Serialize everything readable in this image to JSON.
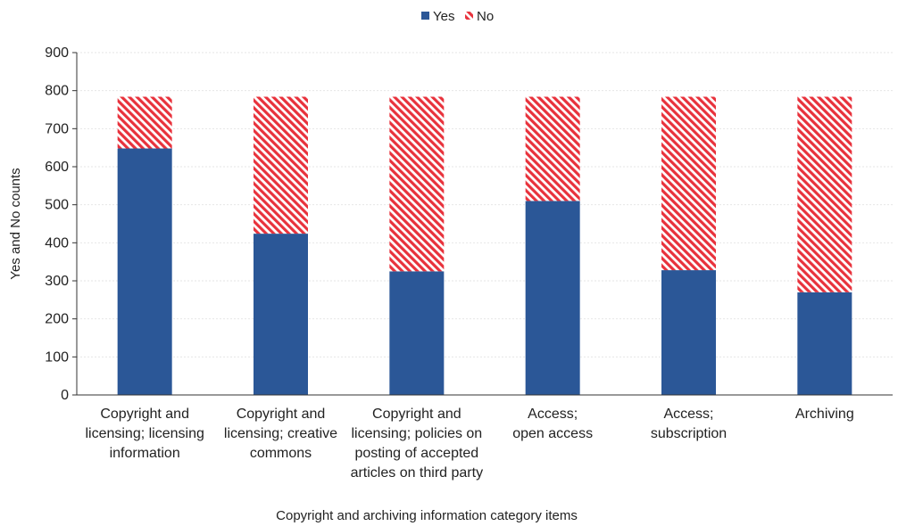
{
  "chart_data": {
    "type": "bar",
    "stacked": true,
    "title": "",
    "xlabel": "Copyright and archiving information category items",
    "ylabel": "Yes and No counts",
    "ylim": [
      0,
      900
    ],
    "yticks": [
      0,
      100,
      200,
      300,
      400,
      500,
      600,
      700,
      800,
      900
    ],
    "grid": true,
    "legend_position": "top-center",
    "categories": [
      [
        "Copyright and",
        "licensing; licensing",
        "information"
      ],
      [
        "Copyright and",
        "licensing; creative",
        "commons"
      ],
      [
        "Copyright and",
        "licensing; policies on",
        "posting of accepted",
        "articles on third party"
      ],
      [
        "Access;",
        "open access"
      ],
      [
        "Access;",
        "subscription"
      ],
      [
        "Archiving"
      ]
    ],
    "series": [
      {
        "name": "Yes",
        "color": "#2b5797",
        "pattern": "solid",
        "values": [
          648,
          424,
          325,
          510,
          328,
          270
        ]
      },
      {
        "name": "No",
        "color": "#e8323c",
        "pattern": "diagonal-hatch",
        "values": [
          136,
          360,
          459,
          274,
          456,
          514
        ]
      }
    ]
  }
}
